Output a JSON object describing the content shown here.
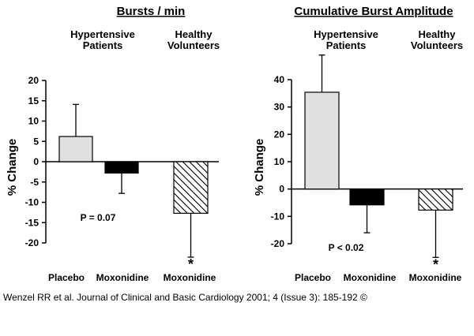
{
  "chart_data": [
    {
      "type": "bar",
      "title": "Bursts / min",
      "ylabel": "% Change",
      "ylim": [
        -20,
        20
      ],
      "yticks": [
        20,
        15,
        10,
        5,
        0,
        -5,
        -10,
        -15,
        -20
      ],
      "group_labels": [
        {
          "line1": "Hypertensive",
          "line2": "Patients"
        },
        {
          "line1": "Healthy",
          "line2": "Volunteers"
        }
      ],
      "categories": [
        "Placebo",
        "Moxonidine",
        "Moxonidine"
      ],
      "values": [
        6.2,
        -2.8,
        -12.7
      ],
      "error": [
        {
          "dir": "up",
          "to": 14.1
        },
        {
          "dir": "down",
          "to": -7.8
        },
        {
          "dir": "down",
          "to": -23.5
        }
      ],
      "fills": [
        "light-gray",
        "black",
        "hatched"
      ],
      "significance": [
        "",
        "",
        "*"
      ],
      "annotation": "P = 0.07"
    },
    {
      "type": "bar",
      "title": "Cumulative Burst Amplitude",
      "ylabel": "% Change",
      "ylim": [
        -20,
        40
      ],
      "yticks": [
        40,
        30,
        20,
        10,
        0,
        -10,
        -20
      ],
      "group_labels": [
        {
          "line1": "Hypertensive",
          "line2": "Patients"
        },
        {
          "line1": "Healthy",
          "line2": "Volunteers"
        }
      ],
      "categories": [
        "Placebo",
        "Moxonidine",
        "Moxonidine"
      ],
      "values": [
        35.4,
        -5.8,
        -7.7
      ],
      "error": [
        {
          "dir": "up",
          "to": 49.0
        },
        {
          "dir": "down",
          "to": -16.0
        },
        {
          "dir": "down",
          "to": -25.0
        }
      ],
      "fills": [
        "light-gray",
        "black",
        "hatched"
      ],
      "significance": [
        "",
        "",
        "*"
      ],
      "annotation": "P < 0.02"
    }
  ],
  "colors": {
    "light_bar": "#e0e0e0",
    "dark_bar": "#000000",
    "hatch": "#000000"
  },
  "citation": "Wenzel RR et al. Journal of Clinical and Basic Cardiology 2001; 4 (Issue 3): 185-192 ©"
}
